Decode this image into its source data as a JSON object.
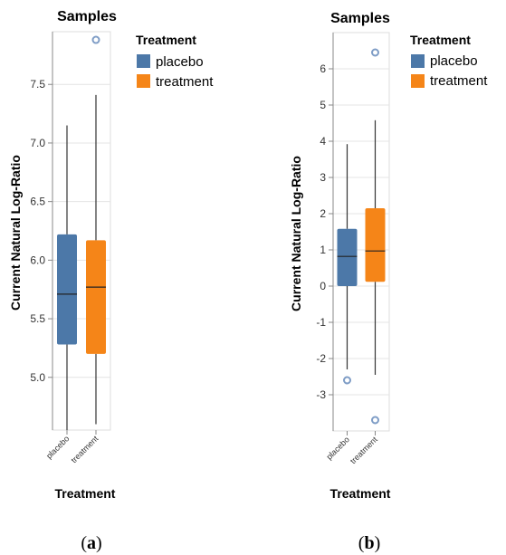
{
  "chart_data": [
    {
      "type": "boxplot",
      "panel_label": "(a)",
      "panel_letter": "a",
      "title": "Samples",
      "xlabel": "Treatment",
      "ylabel": "Current Natural Log-Ratio",
      "ylim": [
        4.55,
        7.95
      ],
      "yticks": [
        5.0,
        5.5,
        6.0,
        6.5,
        7.0,
        7.5
      ],
      "ytick_labels": [
        "5.0",
        "5.5",
        "6.0",
        "6.5",
        "7.0",
        "7.5"
      ],
      "legend": {
        "title": "Treatment",
        "position": "top-right"
      },
      "categories": [
        "placebo",
        "treatment"
      ],
      "series": [
        {
          "name": "placebo",
          "color": "#4c78a8",
          "min": 4.55,
          "q1": 5.28,
          "median": 5.71,
          "q3": 6.22,
          "max": 7.15,
          "outliers": []
        },
        {
          "name": "treatment",
          "color": "#f58518",
          "min": 4.6,
          "q1": 5.2,
          "median": 5.77,
          "q3": 6.17,
          "max": 7.41,
          "outliers": [
            7.88
          ]
        }
      ]
    },
    {
      "type": "boxplot",
      "panel_label": "(b)",
      "panel_letter": "b",
      "title": "Samples",
      "xlabel": "Treatment",
      "ylabel": "Current Natural Log-Ratio",
      "ylim": [
        -4,
        7
      ],
      "yticks": [
        -3,
        -2,
        -1,
        0,
        1,
        2,
        3,
        4,
        5,
        6
      ],
      "ytick_labels": [
        "-3",
        "-2",
        "-1",
        "0",
        "1",
        "2",
        "3",
        "4",
        "5",
        "6"
      ],
      "legend": {
        "title": "Treatment",
        "position": "top-right"
      },
      "categories": [
        "placebo",
        "treatment"
      ],
      "series": [
        {
          "name": "placebo",
          "color": "#4c78a8",
          "min": -2.3,
          "q1": 0.0,
          "median": 0.82,
          "q3": 1.58,
          "max": 3.92,
          "outliers": [
            -2.6
          ]
        },
        {
          "name": "treatment",
          "color": "#f58518",
          "min": -2.45,
          "q1": 0.12,
          "median": 0.97,
          "q3": 2.15,
          "max": 4.58,
          "outliers": [
            6.45,
            -3.7
          ]
        }
      ]
    }
  ]
}
